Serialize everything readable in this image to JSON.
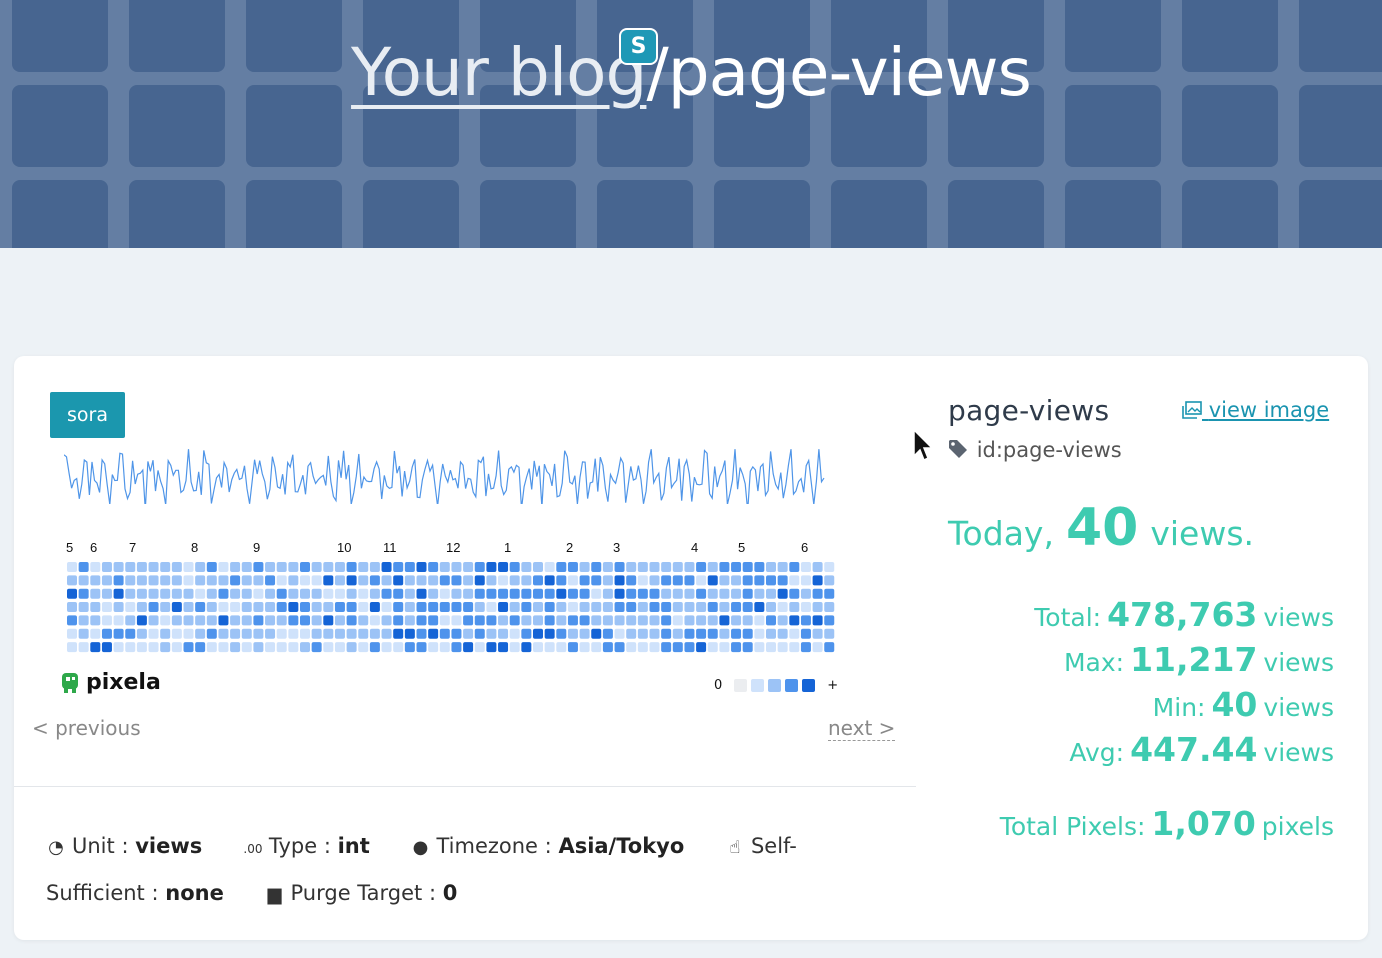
{
  "header": {
    "blog_link": "Your blog",
    "separator": "/",
    "graph_path": "page-views",
    "badge": "S"
  },
  "card": {
    "user": "sora",
    "months": [
      "5",
      "6",
      "7",
      "8",
      "9",
      "10",
      "11",
      "12",
      "1",
      "2",
      "3",
      "4",
      "5",
      "6"
    ],
    "legend_min": "0",
    "legend_max": "+",
    "brand": "pixela",
    "prev_label": "< previous",
    "next_label": "next >",
    "meta": {
      "unit_label": "Unit",
      "unit_value": "views",
      "type_label": "Type",
      "type_value": "int",
      "tz_label": "Timezone",
      "tz_value": "Asia/Tokyo",
      "self_label": "Self-Sufficient",
      "self_value": "none",
      "purge_label": "Purge Target",
      "purge_value": "0",
      "colon": ":"
    }
  },
  "panel": {
    "name": "page-views",
    "view_image": "view image",
    "id_text": "id:page-views",
    "today_label": "Today",
    "today_comma": ",",
    "today_value": "40",
    "today_unit": "views.",
    "total_label": "Total:",
    "total_value": "478,763",
    "max_label": "Max:",
    "max_value": "11,217",
    "min_label": "Min:",
    "min_value": "40",
    "avg_label": "Avg:",
    "avg_value": "447.44",
    "unit": "views",
    "pixels_label": "Total Pixels:",
    "pixels_value": "1,070",
    "pixels_unit": "pixels"
  },
  "colors": {
    "accent": "#3ecbb0",
    "link": "#1a94b0",
    "tag": "#1b97ae",
    "heat": [
      "#ebedf0",
      "#cfe2fb",
      "#9cc3f6",
      "#4e93ec",
      "#1564d6"
    ]
  }
}
